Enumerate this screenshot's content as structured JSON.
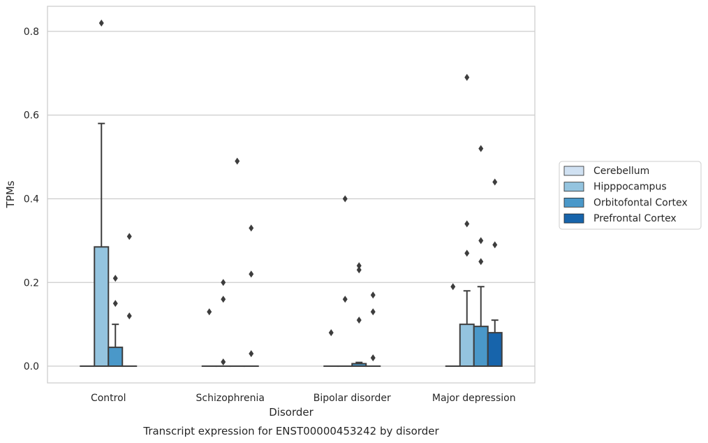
{
  "chart_data": {
    "type": "box",
    "caption": "Transcript expression for ENST00000453242 by disorder",
    "xlabel": "Disorder",
    "ylabel": "TPMs",
    "ylim": [
      -0.04,
      0.86
    ],
    "yticks": [
      0.0,
      0.2,
      0.4,
      0.6,
      0.8
    ],
    "ytick_labels": [
      "0.0",
      "0.2",
      "0.4",
      "0.6",
      "0.8"
    ],
    "grid": "horizontal",
    "legend_position": "right",
    "categories": [
      "Control",
      "Schizophrenia",
      "Bipolar disorder",
      "Major depression"
    ],
    "series": [
      {
        "name": "Cerebellum",
        "color": "#d0e1f2",
        "boxes": [
          {
            "q1": 0,
            "median": 0,
            "q3": 0,
            "whisker_low": 0,
            "whisker_high": 0,
            "outliers": []
          },
          {
            "q1": 0,
            "median": 0,
            "q3": 0,
            "whisker_low": 0,
            "whisker_high": 0,
            "outliers": [
              0.13
            ]
          },
          {
            "q1": 0,
            "median": 0,
            "q3": 0,
            "whisker_low": 0,
            "whisker_high": 0,
            "outliers": [
              0.08
            ]
          },
          {
            "q1": 0,
            "median": 0,
            "q3": 0,
            "whisker_low": 0,
            "whisker_high": 0,
            "outliers": [
              0.19
            ]
          }
        ]
      },
      {
        "name": "Hipppocampus",
        "color": "#94c4df",
        "boxes": [
          {
            "q1": 0,
            "median": 0,
            "q3": 0.285,
            "whisker_low": 0,
            "whisker_high": 0.58,
            "outliers": [
              0.82
            ]
          },
          {
            "q1": 0,
            "median": 0,
            "q3": 0,
            "whisker_low": 0,
            "whisker_high": 0,
            "outliers": [
              0.2,
              0.01,
              0.16
            ]
          },
          {
            "q1": 0,
            "median": 0,
            "q3": 0,
            "whisker_low": 0,
            "whisker_high": 0,
            "outliers": [
              0.4,
              0.16
            ]
          },
          {
            "q1": 0,
            "median": 0,
            "q3": 0.1,
            "whisker_low": 0,
            "whisker_high": 0.18,
            "outliers": [
              0.69,
              0.34,
              0.27
            ]
          }
        ]
      },
      {
        "name": "Orbitofontal Cortex",
        "color": "#4a98c9",
        "boxes": [
          {
            "q1": 0,
            "median": 0,
            "q3": 0.045,
            "whisker_low": 0,
            "whisker_high": 0.1,
            "outliers": [
              0.21,
              0.15
            ]
          },
          {
            "q1": 0,
            "median": 0,
            "q3": 0,
            "whisker_low": 0,
            "whisker_high": 0,
            "outliers": [
              0.49
            ]
          },
          {
            "q1": 0,
            "median": 0,
            "q3": 0.006,
            "whisker_low": 0,
            "whisker_high": 0.009,
            "outliers": [
              0.24,
              0.23,
              0.11
            ]
          },
          {
            "q1": 0,
            "median": 0,
            "q3": 0.095,
            "whisker_low": 0,
            "whisker_high": 0.19,
            "outliers": [
              0.52,
              0.3,
              0.25
            ]
          }
        ]
      },
      {
        "name": "Prefrontal Cortex",
        "color": "#1764ab",
        "boxes": [
          {
            "q1": 0,
            "median": 0,
            "q3": 0,
            "whisker_low": 0,
            "whisker_high": 0,
            "outliers": [
              0.31,
              0.12
            ]
          },
          {
            "q1": 0,
            "median": 0,
            "q3": 0,
            "whisker_low": 0,
            "whisker_high": 0,
            "outliers": [
              0.33,
              0.22,
              0.03
            ]
          },
          {
            "q1": 0,
            "median": 0,
            "q3": 0,
            "whisker_low": 0,
            "whisker_high": 0,
            "outliers": [
              0.17,
              0.13,
              0.02
            ]
          },
          {
            "q1": 0,
            "median": 0,
            "q3": 0.08,
            "whisker_low": 0,
            "whisker_high": 0.11,
            "outliers": [
              0.44,
              0.29
            ]
          }
        ]
      }
    ]
  },
  "colors": {
    "box_edge": "#3d3d3d",
    "grid": "#cccccc",
    "spine": "#cccccc",
    "outlier": "#3d3d3d"
  }
}
